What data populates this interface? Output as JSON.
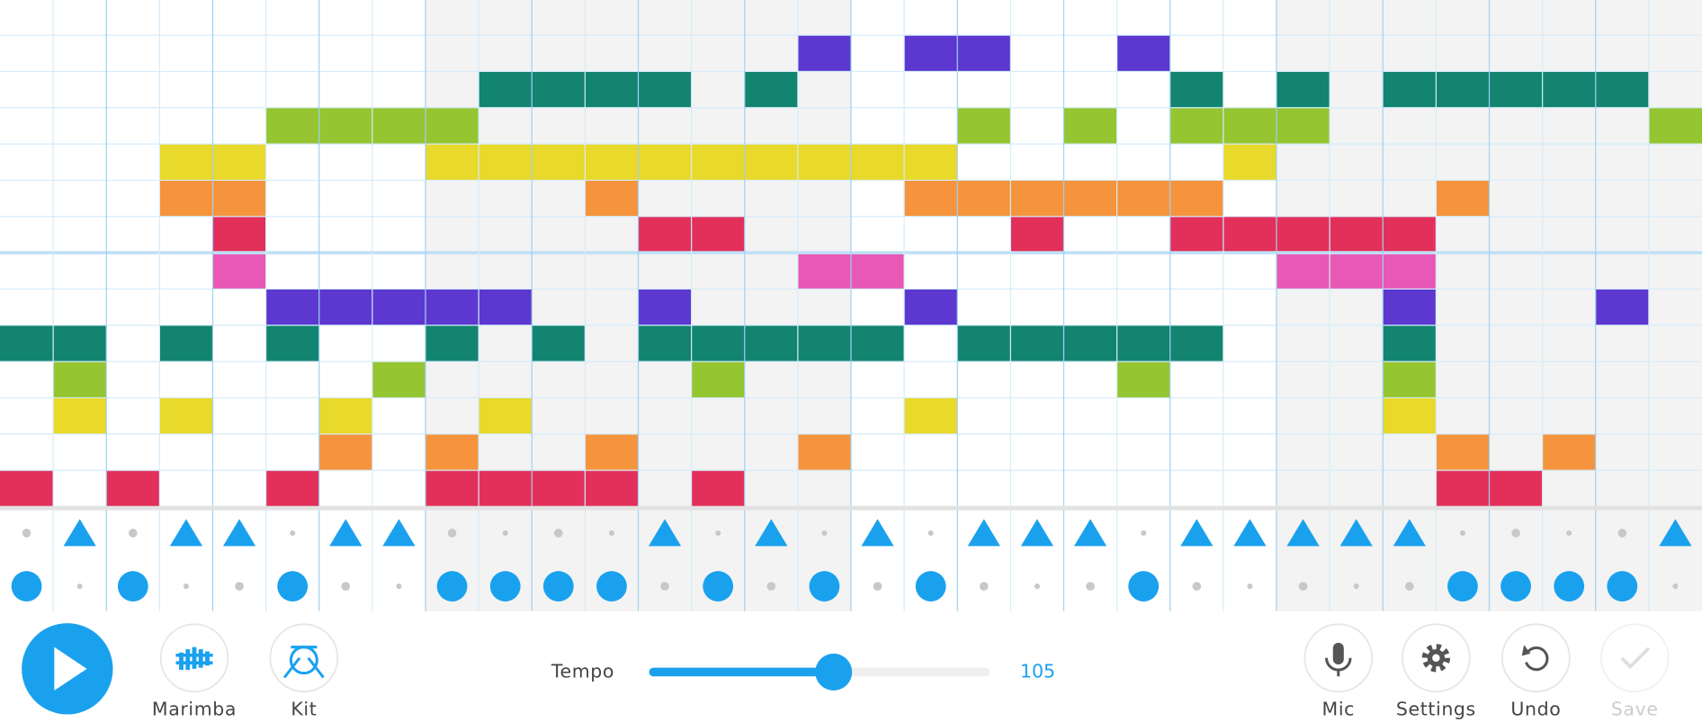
{
  "melody": {
    "row_colors": [
      "#e858b4",
      "#5c38d0",
      "#13846f",
      "#95c531",
      "#e8d92a",
      "#f5943d",
      "#e3305a",
      "#e858b4",
      "#5c38d0",
      "#13846f",
      "#95c531",
      "#e8d92a",
      "#f5943d",
      "#e3305a"
    ],
    "rows": [
      [],
      [
        15,
        17,
        18,
        21
      ],
      [
        9,
        10,
        11,
        12,
        14,
        22,
        24,
        26,
        27,
        28,
        29,
        30
      ],
      [
        5,
        6,
        7,
        8,
        18,
        20,
        22,
        23,
        24,
        31
      ],
      [
        3,
        4,
        8,
        9,
        10,
        11,
        12,
        13,
        14,
        15,
        16,
        17,
        23
      ],
      [
        3,
        4,
        11,
        17,
        18,
        19,
        20,
        21,
        22,
        27
      ],
      [
        4,
        12,
        13,
        19,
        22,
        23,
        24,
        25,
        26
      ],
      [
        4,
        15,
        16,
        24,
        25,
        26
      ],
      [
        5,
        6,
        7,
        8,
        9,
        12,
        17,
        26,
        30
      ],
      [
        0,
        1,
        3,
        5,
        8,
        10,
        12,
        13,
        14,
        15,
        16,
        18,
        19,
        20,
        21,
        22,
        26
      ],
      [
        1,
        7,
        13,
        21,
        26
      ],
      [
        1,
        3,
        6,
        9,
        17,
        26
      ],
      [
        6,
        8,
        11,
        15,
        27,
        29
      ],
      [
        0,
        2,
        5,
        8,
        9,
        10,
        11,
        13,
        27,
        28
      ]
    ]
  },
  "percussion": {
    "triangles": [
      1,
      3,
      4,
      6,
      7,
      12,
      14,
      16,
      18,
      19,
      20,
      22,
      23,
      24,
      25,
      26,
      31
    ],
    "circles": [
      0,
      2,
      5,
      8,
      9,
      10,
      11,
      13,
      15,
      17,
      21,
      27,
      28,
      29,
      30
    ]
  },
  "controls": {
    "instrument": "Marimba",
    "kit": "Kit",
    "tempo_label": "Tempo",
    "tempo": 105,
    "mic": "Mic",
    "settings": "Settings",
    "undo": "Undo",
    "save": "Save"
  }
}
